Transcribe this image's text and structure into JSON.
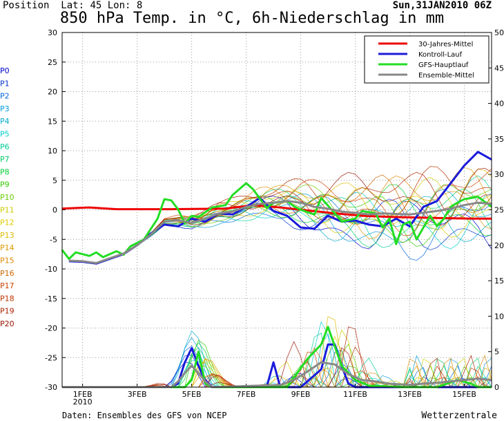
{
  "header": {
    "position_label": "Position",
    "lat_label": "Lat:",
    "lat": "45",
    "lon_label": "Lon:",
    "lon": "8",
    "date": "Sun,31JAN2010 06Z",
    "title": "850 hPa Temp. in °C, 6h-Niederschlag in mm"
  },
  "footer": {
    "source": "Daten: Ensembles des GFS von NCEP",
    "brand": "Wetterzentrale"
  },
  "chart_data": {
    "type": "line",
    "grid": true,
    "legend_placement": "top-right",
    "x_tick_labels": [
      "1FEB\n2010",
      "3FEB",
      "5FEB",
      "7FEB",
      "9FEB",
      "11FEB",
      "13FEB",
      "15FEB"
    ],
    "x_tick_hours": [
      18,
      66,
      114,
      162,
      210,
      258,
      306,
      354
    ],
    "x_range_hours": [
      0,
      378
    ],
    "y_left": {
      "range": [
        -30,
        30
      ],
      "ticks": [
        30,
        25,
        20,
        15,
        10,
        5,
        0,
        -5,
        -10,
        -15,
        -20,
        -25,
        -30
      ]
    },
    "y_right": {
      "range": [
        0,
        50
      ],
      "ticks": [
        50,
        45,
        40,
        35,
        30,
        25,
        20,
        15,
        10,
        5,
        0
      ]
    },
    "members": [
      {
        "name": "P0",
        "color": "#0000cc"
      },
      {
        "name": "P1",
        "color": "#0033cc"
      },
      {
        "name": "P2",
        "color": "#0066dd"
      },
      {
        "name": "P3",
        "color": "#0099dd"
      },
      {
        "name": "P4",
        "color": "#00aacc"
      },
      {
        "name": "P5",
        "color": "#00cccc"
      },
      {
        "name": "P6",
        "color": "#00cc99"
      },
      {
        "name": "P7",
        "color": "#00cc66"
      },
      {
        "name": "P8",
        "color": "#00cc33"
      },
      {
        "name": "P9",
        "color": "#33cc00"
      },
      {
        "name": "P10",
        "color": "#66cc00"
      },
      {
        "name": "P11",
        "color": "#cccc00"
      },
      {
        "name": "P12",
        "color": "#ddcc00"
      },
      {
        "name": "P13",
        "color": "#ddbb00"
      },
      {
        "name": "P14",
        "color": "#dd9900"
      },
      {
        "name": "P15",
        "color": "#dd8800"
      },
      {
        "name": "P16",
        "color": "#cc6600"
      },
      {
        "name": "P17",
        "color": "#cc4400"
      },
      {
        "name": "P18",
        "color": "#bb3300"
      },
      {
        "name": "P19",
        "color": "#aa2200"
      },
      {
        "name": "P20",
        "color": "#991100"
      }
    ],
    "series": [
      {
        "name": "30-Jahres-Mittel",
        "color": "#ee0000",
        "width": 3,
        "axis": "left",
        "x": [
          0,
          24,
          48,
          96,
          144,
          168,
          192,
          216,
          240,
          264,
          288,
          312,
          336,
          360,
          378
        ],
        "y": [
          0.2,
          0.4,
          0.1,
          0.1,
          0.2,
          0.8,
          0.4,
          -0.1,
          -0.6,
          -1.0,
          -1.2,
          -1.3,
          -1.4,
          -1.5,
          -1.5
        ]
      },
      {
        "name": "Kontroll-Lauf",
        "color": "#1a1adc",
        "width": 3,
        "axis": "left",
        "x": [
          6,
          18,
          30,
          42,
          54,
          66,
          78,
          90,
          102,
          114,
          126,
          138,
          150,
          162,
          174,
          186,
          198,
          210,
          222,
          234,
          246,
          258,
          270,
          282,
          294,
          306,
          318,
          330,
          342,
          354,
          366,
          378
        ],
        "y": [
          -8.7,
          -8.8,
          -9.1,
          -8.3,
          -7.5,
          -6.0,
          -4.0,
          -2.5,
          -2.8,
          -1.5,
          -2.0,
          -0.6,
          -0.8,
          0.5,
          2.0,
          -0.2,
          -1.0,
          -3.0,
          -3.2,
          -1.0,
          -2.0,
          -1.8,
          -2.5,
          -2.8,
          -1.5,
          -2.8,
          0.5,
          1.5,
          4.5,
          7.5,
          9.8,
          8.5
        ]
      },
      {
        "name": "GFS-Hauptlauf",
        "color": "#22dd22",
        "width": 3,
        "axis": "left",
        "x": [
          0,
          6,
          12,
          24,
          30,
          36,
          48,
          54,
          60,
          72,
          84,
          90,
          96,
          102,
          108,
          114,
          120,
          132,
          144,
          150,
          162,
          168,
          180,
          186,
          198,
          204,
          210,
          222,
          228,
          240,
          246,
          258,
          264,
          276,
          282,
          288,
          294,
          300,
          306,
          312,
          318,
          324,
          330,
          336,
          342,
          348,
          354,
          366,
          378
        ],
        "y": [
          -6.8,
          -8.3,
          -7.2,
          -7.8,
          -7.2,
          -8.0,
          -7.0,
          -7.6,
          -6.2,
          -5.0,
          -1.5,
          1.8,
          1.6,
          0.1,
          -2.3,
          -1.0,
          -1.2,
          0.4,
          0.8,
          2.5,
          4.5,
          3.5,
          0.3,
          1.2,
          1.5,
          0.6,
          0.0,
          -0.8,
          2.0,
          -0.6,
          -2.0,
          -1.5,
          -0.2,
          -0.6,
          -3.0,
          -1.5,
          -5.8,
          -2.5,
          -2.0,
          -5.0,
          -3.0,
          -1.0,
          -2.8,
          -1.5,
          0.5,
          1.2,
          1.8,
          2.2,
          0.5
        ]
      },
      {
        "name": "Ensemble-Mittel",
        "color": "#888888",
        "width": 3,
        "axis": "left",
        "x": [
          6,
          18,
          30,
          42,
          54,
          66,
          78,
          90,
          102,
          114,
          126,
          138,
          150,
          162,
          174,
          186,
          198,
          210,
          222,
          234,
          246,
          258,
          270,
          282,
          294,
          306,
          318,
          330,
          342,
          354,
          366,
          378
        ],
        "y": [
          -8.6,
          -8.7,
          -9.0,
          -8.2,
          -7.4,
          -6.0,
          -4.2,
          -2.0,
          -1.8,
          -2.2,
          -1.5,
          -0.6,
          -0.3,
          0.5,
          1.0,
          1.2,
          1.5,
          1.2,
          0.5,
          0.2,
          -0.3,
          -0.5,
          -0.8,
          -0.6,
          -0.7,
          -0.8,
          -0.5,
          -0.2,
          0.2,
          0.8,
          1.2,
          1.0
        ]
      }
    ],
    "precipitation_series": [
      {
        "name": "Kontroll-Lauf",
        "color": "#1a1adc",
        "width": 3,
        "axis": "right",
        "x": [
          0,
          96,
          102,
          108,
          114,
          120,
          126,
          132,
          180,
          186,
          192,
          210,
          228,
          234,
          240,
          246,
          252,
          258,
          378
        ],
        "y": [
          0,
          0,
          0.5,
          3.5,
          5.5,
          3.0,
          1.0,
          0,
          0,
          3.5,
          0,
          0,
          2.5,
          6.0,
          6.0,
          3.0,
          0.5,
          0,
          0
        ]
      },
      {
        "name": "GFS-Hauptlauf",
        "color": "#22dd22",
        "width": 3,
        "axis": "right",
        "x": [
          0,
          108,
          114,
          120,
          126,
          132,
          138,
          198,
          216,
          228,
          234,
          246,
          258,
          270,
          300,
          330,
          348,
          360,
          366,
          378
        ],
        "y": [
          0,
          0,
          1.0,
          5.0,
          0.5,
          0,
          0,
          0,
          4.0,
          6.0,
          8.5,
          3.0,
          1.0,
          0.2,
          0,
          0,
          1.0,
          0.5,
          0,
          0
        ]
      },
      {
        "name": "Ensemble-Mittel",
        "color": "#888888",
        "width": 3,
        "axis": "right",
        "x": [
          0,
          96,
          102,
          108,
          114,
          120,
          126,
          132,
          192,
          204,
          216,
          228,
          240,
          252,
          264,
          276,
          288,
          306,
          318,
          330,
          342,
          354,
          366,
          378
        ],
        "y": [
          0,
          0,
          0.8,
          2.0,
          3.0,
          2.0,
          0.8,
          0,
          0.3,
          1.0,
          2.2,
          3.5,
          3.2,
          1.8,
          1.0,
          0.8,
          0.5,
          0.3,
          0.5,
          0.6,
          0.8,
          1.0,
          1.2,
          1.0
        ]
      }
    ]
  }
}
